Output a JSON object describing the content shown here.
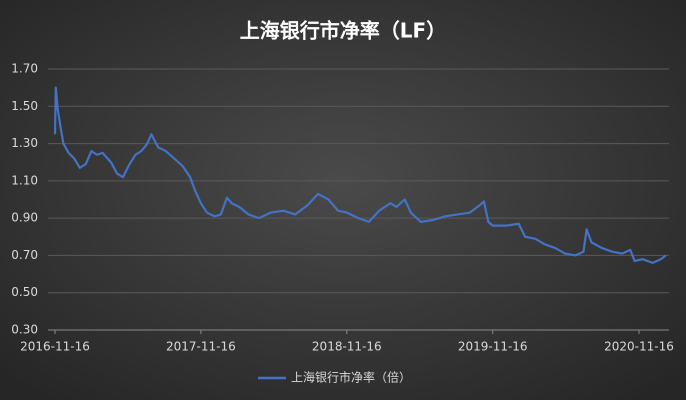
{
  "chart_data": {
    "type": "line",
    "title": "上海银行市净率（LF）",
    "x": [
      "2016-11-16",
      "2016-11-18",
      "2016-11-23",
      "2016-11-29",
      "2016-12-07",
      "2016-12-20",
      "2017-01-03",
      "2017-01-17",
      "2017-02-01",
      "2017-02-15",
      "2017-03-01",
      "2017-03-15",
      "2017-04-05",
      "2017-04-20",
      "2017-05-05",
      "2017-05-19",
      "2017-06-05",
      "2017-06-20",
      "2017-07-05",
      "2017-07-15",
      "2017-08-01",
      "2017-08-20",
      "2017-09-10",
      "2017-10-01",
      "2017-10-20",
      "2017-11-01",
      "2017-11-16",
      "2017-12-01",
      "2017-12-20",
      "2018-01-05",
      "2018-01-20",
      "2018-02-01",
      "2018-02-20",
      "2018-03-15",
      "2018-04-10",
      "2018-05-10",
      "2018-06-10",
      "2018-07-10",
      "2018-08-10",
      "2018-09-05",
      "2018-10-01",
      "2018-10-25",
      "2018-11-16",
      "2018-12-15",
      "2019-01-10",
      "2019-02-05",
      "2019-03-05",
      "2019-03-20",
      "2019-04-10",
      "2019-04-25",
      "2019-05-20",
      "2019-06-20",
      "2019-07-20",
      "2019-08-20",
      "2019-09-20",
      "2019-10-15",
      "2019-10-25",
      "2019-11-05",
      "2019-11-16",
      "2019-12-20",
      "2020-01-20",
      "2020-02-05",
      "2020-03-01",
      "2020-03-25",
      "2020-04-20",
      "2020-05-15",
      "2020-06-10",
      "2020-06-30",
      "2020-07-08",
      "2020-07-20",
      "2020-08-15",
      "2020-09-10",
      "2020-10-05",
      "2020-10-25",
      "2020-11-05",
      "2020-11-25",
      "2020-12-20",
      "2021-01-10",
      "2021-01-22"
    ],
    "series": [
      {
        "name": "上海银行市净率（倍）",
        "color": "#4472c4",
        "values": [
          1.35,
          1.6,
          1.48,
          1.4,
          1.3,
          1.25,
          1.22,
          1.17,
          1.19,
          1.26,
          1.24,
          1.25,
          1.2,
          1.14,
          1.12,
          1.18,
          1.24,
          1.26,
          1.3,
          1.35,
          1.28,
          1.26,
          1.22,
          1.18,
          1.12,
          1.05,
          0.98,
          0.93,
          0.91,
          0.92,
          1.01,
          0.98,
          0.96,
          0.92,
          0.9,
          0.93,
          0.94,
          0.92,
          0.97,
          1.03,
          1.0,
          0.94,
          0.93,
          0.9,
          0.88,
          0.94,
          0.98,
          0.96,
          1.0,
          0.93,
          0.88,
          0.89,
          0.91,
          0.92,
          0.93,
          0.97,
          0.99,
          0.88,
          0.86,
          0.86,
          0.87,
          0.8,
          0.79,
          0.76,
          0.74,
          0.71,
          0.7,
          0.72,
          0.84,
          0.77,
          0.74,
          0.72,
          0.71,
          0.73,
          0.67,
          0.68,
          0.66,
          0.68,
          0.7
        ]
      }
    ],
    "xlim": [
      "2016-11-16",
      "2021-01-25"
    ],
    "xticks": [
      "2016-11-16",
      "2017-11-16",
      "2018-11-16",
      "2019-11-16",
      "2020-11-16"
    ],
    "ylim": [
      0.3,
      1.7
    ],
    "yticks": [
      {
        "value": 0.3,
        "label": "0.30"
      },
      {
        "value": 0.5,
        "label": "0.50"
      },
      {
        "value": 0.7,
        "label": "0.70"
      },
      {
        "value": 0.9,
        "label": "0.90"
      },
      {
        "value": 1.1,
        "label": "1.10"
      },
      {
        "value": 1.3,
        "label": "1.30"
      },
      {
        "value": 1.5,
        "label": "1.50"
      },
      {
        "value": 1.7,
        "label": "1.70"
      }
    ],
    "grid": true,
    "legend": "bottom"
  }
}
